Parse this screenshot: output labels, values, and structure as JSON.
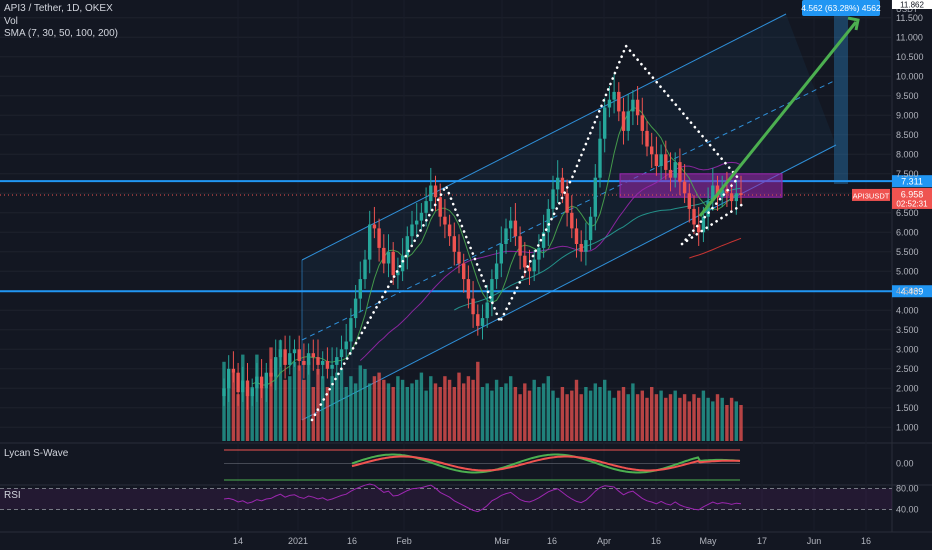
{
  "header": {
    "symbol_line": "API3 / Tether, 1D, OKEX",
    "vol_label": "Vol",
    "sma_label": "SMA (7, 30, 50, 100, 200)"
  },
  "panes": {
    "oscillator_label": "Lycan S-Wave",
    "rsi_label": "RSI"
  },
  "colors": {
    "background": "#131722",
    "up": "#26a69a",
    "down": "#ef5350",
    "level_line": "#2196f3",
    "zone": "#9c27b0",
    "channel": "#2f8fd8",
    "arrow": "#4caf50",
    "rsi_line": "#9c27b0"
  },
  "chart_data": [
    {
      "type": "candlestick",
      "title": "API3 / Tether, 1D, OKEX",
      "x_ticks": [
        "14",
        "2021",
        "16",
        "Feb",
        "Mar",
        "16",
        "Apr",
        "16",
        "May",
        "17",
        "Jun",
        "16"
      ],
      "y_ticks": [
        "1.000",
        "1.500",
        "2.000",
        "2.500",
        "3.000",
        "3.500",
        "4.000",
        "4.500",
        "5.000",
        "5.500",
        "6.000",
        "6.500",
        "7.000",
        "7.500",
        "8.000",
        "8.500",
        "9.000",
        "9.500",
        "10.000",
        "10.500",
        "11.000",
        "11.500"
      ],
      "y_unit": "USDT",
      "ylim": [
        0.7,
        12.0
      ],
      "horizontal_levels": [
        {
          "value": 7.311,
          "label": "7.311"
        },
        {
          "value": 4.489,
          "label": "4.489"
        }
      ],
      "current_price": {
        "symbol": "API3USDT",
        "value": "6.958",
        "countdown": "02:52:31"
      },
      "measure_label": "4.562 (63.28%) 4562",
      "top_tag": "11.862",
      "zone": {
        "low": 6.9,
        "high": 7.5
      },
      "series": [
        {
          "name": "API3USDT",
          "values": [
            2.0,
            2.5,
            2.4,
            1.9,
            2.2,
            1.8,
            2.0,
            2.3,
            2.0,
            2.4,
            2.3,
            2.8,
            3.0,
            2.6,
            2.9,
            3.0,
            2.7,
            2.6,
            2.9,
            2.8,
            2.6,
            2.7,
            2.5,
            2.6,
            2.8,
            3.0,
            3.2,
            3.8,
            4.3,
            4.8,
            5.3,
            6.2,
            6.1,
            5.6,
            5.2,
            5.5,
            4.9,
            5.0,
            5.4,
            5.9,
            6.2,
            6.3,
            6.5,
            6.8,
            7.2,
            6.9,
            6.4,
            6.2,
            5.9,
            5.5,
            5.2,
            4.8,
            4.3,
            3.9,
            3.6,
            3.8,
            4.2,
            4.8,
            5.2,
            5.7,
            6.1,
            6.3,
            5.9,
            5.4,
            5.1,
            5.0,
            5.3,
            5.6,
            6.0,
            6.6,
            7.1,
            7.4,
            7.0,
            6.5,
            6.1,
            5.7,
            5.5,
            5.8,
            6.4,
            7.4,
            8.4,
            9.2,
            9.4,
            9.6,
            9.1,
            8.6,
            9.1,
            9.4,
            9.0,
            8.6,
            8.2,
            8.0,
            7.7,
            8.0,
            7.6,
            7.4,
            7.8,
            7.3,
            7.0,
            6.6,
            6.2,
            6.0,
            6.4,
            6.8,
            7.2,
            6.9,
            7.1,
            7.0,
            6.8,
            7.0,
            6.958
          ]
        }
      ],
      "volume": [
        2.2,
        1.7,
        1.9,
        1.3,
        2.4,
        1.5,
        1.5,
        2.4,
        1.5,
        1.6,
        2.6,
        2.3,
        2.8,
        1.7,
        1.8,
        2.2,
        2.1,
        1.7,
        2.2,
        1.5,
        2.0,
        1.8,
        1.5,
        1.8,
        1.9,
        2.0,
        1.5,
        1.8,
        1.6,
        2.1,
        2.0,
        1.6,
        1.8,
        1.9,
        1.7,
        1.6,
        1.5,
        1.8,
        1.7,
        1.5,
        1.6,
        1.7,
        1.9,
        1.4,
        1.8,
        1.6,
        1.5,
        1.8,
        1.7,
        1.5,
        1.9,
        1.6,
        1.8,
        1.7,
        2.2,
        1.5,
        1.6,
        1.4,
        1.7,
        1.5,
        1.6,
        1.8,
        1.5,
        1.3,
        1.6,
        1.4,
        1.7,
        1.5,
        1.6,
        1.8,
        1.4,
        1.2,
        1.5,
        1.3,
        1.4,
        1.7,
        1.3,
        1.5,
        1.4,
        1.6,
        1.5,
        1.7,
        1.4,
        1.2,
        1.4,
        1.5,
        1.3,
        1.6,
        1.3,
        1.4,
        1.2,
        1.5,
        1.3,
        1.4,
        1.2,
        1.3,
        1.4,
        1.2,
        1.3,
        1.1,
        1.3,
        1.2,
        1.4,
        1.2,
        1.1,
        1.3,
        1.2,
        1.0,
        1.2,
        1.1,
        1.0
      ]
    },
    {
      "type": "line",
      "title": "Lycan S-Wave",
      "y_ticks": [
        "0.00"
      ],
      "ylim": [
        -1.2,
        1.2
      ]
    },
    {
      "type": "line",
      "title": "RSI",
      "y_ticks": [
        "80.00",
        "40.00"
      ],
      "ylim": [
        20,
        100
      ],
      "series": [
        {
          "name": "RSI",
          "values": [
            55,
            56,
            54,
            50,
            52,
            48,
            50,
            54,
            52,
            55,
            56,
            60,
            63,
            58,
            61,
            62,
            58,
            56,
            60,
            58,
            55,
            57,
            53,
            55,
            58,
            61,
            63,
            68,
            72,
            75,
            78,
            80,
            78,
            72,
            66,
            68,
            60,
            61,
            65,
            69,
            72,
            73,
            74,
            76,
            78,
            73,
            66,
            62,
            58,
            52,
            48,
            44,
            40,
            36,
            34,
            38,
            44,
            52,
            56,
            61,
            64,
            66,
            60,
            54,
            51,
            50,
            53,
            57,
            62,
            67,
            70,
            72,
            66,
            60,
            55,
            51,
            49,
            53,
            60,
            68,
            74,
            77,
            76,
            75,
            68,
            62,
            66,
            68,
            62,
            56,
            52,
            50,
            47,
            51,
            47,
            45,
            50,
            45,
            42,
            40,
            38,
            37,
            42,
            46,
            50,
            47,
            49,
            48,
            46,
            48,
            47
          ]
        }
      ]
    }
  ]
}
